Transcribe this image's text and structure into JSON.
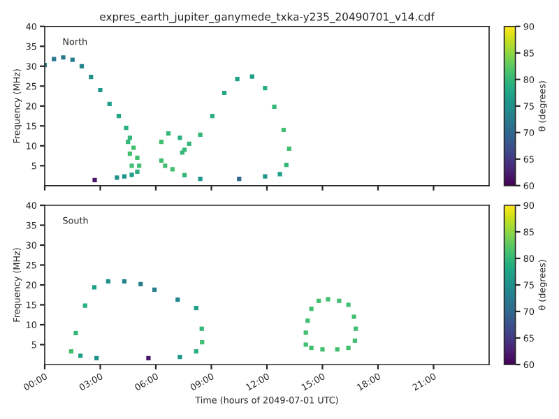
{
  "chart_data": [
    {
      "type": "scatter",
      "title": "expres_earth_jupiter_ganymede_txka-y235_20490701_v14.cdf",
      "ylabel": "Frequency (MHz)",
      "clabel": "θ (degrees)",
      "annotations": [
        "North"
      ],
      "marker": "square",
      "tick_labels": "y",
      "xlim": [
        0,
        24
      ],
      "xticks": [
        {
          "value": 0,
          "label": null
        },
        {
          "value": 3,
          "label": null
        },
        {
          "value": 6,
          "label": null
        },
        {
          "value": 9,
          "label": null
        },
        {
          "value": 12,
          "label": null
        },
        {
          "value": 15,
          "label": null
        },
        {
          "value": 18,
          "label": null
        },
        {
          "value": 21,
          "label": null
        }
      ],
      "ylim": [
        0,
        40
      ],
      "yticks": [
        5,
        10,
        15,
        20,
        25,
        30,
        35,
        40
      ],
      "clim": [
        60,
        90
      ],
      "cticks": [
        60,
        65,
        70,
        75,
        80,
        85,
        90
      ],
      "series": [
        {
          "x": [
            0,
            0.5,
            1.0,
            1.5,
            2.0,
            2.5,
            3.0,
            3.5,
            4.0,
            4.4,
            4.6,
            4.8,
            5.0,
            5.1,
            5.0,
            4.7,
            4.3,
            3.9,
            2.7,
            4.5,
            4.6,
            4.7
          ],
          "values": [
            30.3,
            31.8,
            32.2,
            31.6,
            30.0,
            27.3,
            24.0,
            20.5,
            17.5,
            14.5,
            12.0,
            9.5,
            7.0,
            5.0,
            3.5,
            2.7,
            2.3,
            2.0,
            1.4,
            11,
            8,
            5
          ],
          "colors": [
            "#2a788e",
            "#2a788e",
            "#2a788e",
            "#277f8e",
            "#25858e",
            "#21918c",
            "#1f988b",
            "#1fa088",
            "#22a884",
            "#2ab07f",
            "#35b779",
            "#43bf71",
            "#43bf71",
            "#43bf71",
            "#2ab07f",
            "#1fa088",
            "#1f988b",
            "#21918c",
            "#481769",
            "#35b779",
            "#43bf71",
            "#43bf71"
          ]
        },
        {
          "x": [
            6.3,
            6.3,
            6.5,
            6.9,
            7.55,
            6.68,
            7.3,
            7.43,
            8.4,
            10.5,
            11.9,
            12.7,
            13.05,
            13.2,
            12.9,
            12.4,
            11.9,
            11.2,
            10.4,
            9.7,
            9.05,
            8.4,
            7.8,
            7.55
          ],
          "values": [
            11.0,
            6.3,
            5.0,
            4.1,
            2.6,
            13.1,
            12.0,
            8.3,
            1.7,
            1.7,
            2.3,
            2.9,
            5.2,
            9.3,
            14,
            19.8,
            24.5,
            27.4,
            26.8,
            23.3,
            17.5,
            12.8,
            10.5,
            9.0
          ],
          "colors": [
            "#43bf71",
            "#43bf71",
            "#43bf71",
            "#43bf71",
            "#35b779",
            "#35b779",
            "#2ab07f",
            "#35b779",
            "#1f988b",
            "#31688e",
            "#1f988b",
            "#1fa088",
            "#35b779",
            "#43bf71",
            "#43bf71",
            "#35b779",
            "#2ab07f",
            "#1fa088",
            "#1fa088",
            "#22a884",
            "#2ab07f",
            "#35b779",
            "#35b779",
            "#35b779"
          ]
        }
      ]
    },
    {
      "type": "scatter",
      "xlabel": "Time (hours of 2049-07-01 UTC)",
      "ylabel": "Frequency (MHz)",
      "clabel": "θ (degrees)",
      "annotations": [
        "South"
      ],
      "marker": "square",
      "xlim": [
        0,
        24
      ],
      "xticks": [
        {
          "value": 0,
          "label": "00:00"
        },
        {
          "value": 3,
          "label": "03:00"
        },
        {
          "value": 6,
          "label": "06:00"
        },
        {
          "value": 9,
          "label": "09:00"
        },
        {
          "value": 12,
          "label": "12:00"
        },
        {
          "value": 15,
          "label": "15:00"
        },
        {
          "value": 18,
          "label": "18:00"
        },
        {
          "value": 21,
          "label": "21:00"
        }
      ],
      "ylim": [
        0,
        40
      ],
      "yticks": [
        5,
        10,
        15,
        20,
        25,
        30,
        35,
        40
      ],
      "clim": [
        60,
        90
      ],
      "cticks": [
        60,
        65,
        70,
        75,
        80,
        85,
        90
      ],
      "series": [
        {
          "x": [
            1.43,
            1.68,
            2.18,
            2.68,
            3.43,
            4.3,
            5.18,
            5.93,
            7.18,
            8.18,
            8.48,
            8.5,
            8.18,
            7.3,
            5.6,
            2.8,
            1.93
          ],
          "values": [
            3.3,
            7.9,
            14.8,
            19.4,
            20.9,
            20.9,
            20.2,
            18.8,
            16.3,
            14.2,
            9.0,
            5.6,
            3.3,
            1.9,
            1.6,
            1.6,
            2.2
          ],
          "colors": [
            "#43bf71",
            "#35b779",
            "#2ab07f",
            "#1fa088",
            "#21918c",
            "#25858e",
            "#277f8e",
            "#277f8e",
            "#25858e",
            "#1fa088",
            "#35b779",
            "#43bf71",
            "#2ab07f",
            "#1f988b",
            "#481769",
            "#21918c",
            "#1fa088"
          ]
        },
        {
          "x": [
            14.1,
            14.1,
            14.2,
            14.4,
            14.8,
            15.3,
            15.9,
            16.4,
            16.7,
            16.8,
            16.75,
            16.4,
            15.8,
            15.0,
            14.4
          ],
          "values": [
            5,
            8,
            11,
            14,
            16,
            16.4,
            16,
            15,
            12,
            9,
            6,
            4.2,
            3.8,
            3.8,
            4.2
          ],
          "color": "#43bf71"
        }
      ]
    }
  ]
}
